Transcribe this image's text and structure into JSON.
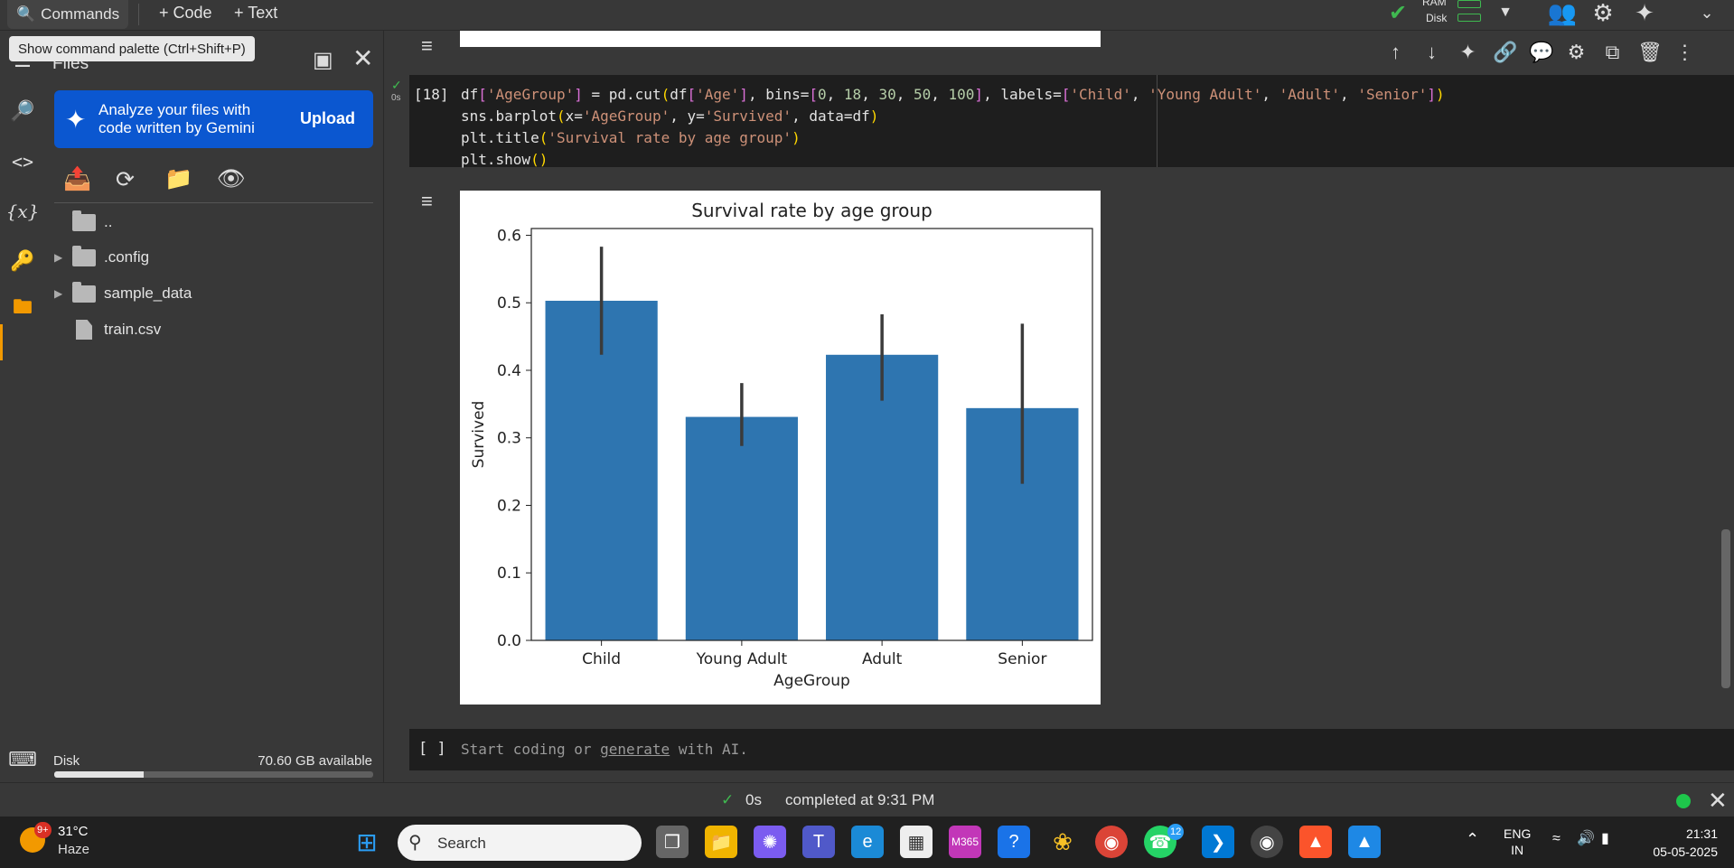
{
  "toolbar": {
    "commands_label": "Commands",
    "add_code_label": "+ Code",
    "add_text_label": "+ Text",
    "tooltip": "Show command palette (Ctrl+Shift+P)",
    "ram_label": "RAM",
    "disk_label": "Disk"
  },
  "file_panel": {
    "title": "Files",
    "gemini_text": "Analyze your files with code written by Gemini",
    "upload_label": "Upload",
    "tree": [
      {
        "name": "..",
        "type": "folder-open",
        "expandable": false
      },
      {
        "name": ".config",
        "type": "folder",
        "expandable": true
      },
      {
        "name": "sample_data",
        "type": "folder",
        "expandable": true
      },
      {
        "name": "train.csv",
        "type": "file",
        "expandable": false
      }
    ],
    "disk_label": "Disk",
    "disk_available": "70.60 GB available",
    "disk_used_fraction": 0.28
  },
  "cell": {
    "exec_count": "[18]",
    "run_time": "0s",
    "code_lines": [
      "df['AgeGroup'] = pd.cut(df['Age'], bins=[0, 18, 30, 50, 100], labels=['Child', 'Young Adult', 'Adult', 'Senior'])",
      "sns.barplot(x='AgeGroup', y='Survived', data=df)",
      "plt.title('Survival rate by age group')",
      "plt.show()"
    ]
  },
  "chart_data": {
    "type": "bar",
    "title": "Survival rate by age group",
    "xlabel": "AgeGroup",
    "ylabel": "Survived",
    "categories": [
      "Child",
      "Young Adult",
      "Adult",
      "Senior"
    ],
    "values": [
      0.503,
      0.331,
      0.423,
      0.344
    ],
    "error_low": [
      0.423,
      0.288,
      0.355,
      0.232
    ],
    "error_high": [
      0.583,
      0.381,
      0.483,
      0.469
    ],
    "ylim": [
      0,
      0.61
    ],
    "yticks": [
      "0.0",
      "0.1",
      "0.2",
      "0.3",
      "0.4",
      "0.5",
      "0.6"
    ],
    "ytick_values": [
      0,
      0.1,
      0.2,
      0.3,
      0.4,
      0.5,
      0.6
    ],
    "color": "#2e75b0",
    "errbar_color": "#3b3b3b",
    "grid": false,
    "legend": false
  },
  "new_cell": {
    "brackets": "[ ]",
    "placeholder_pre": "Start coding or ",
    "placeholder_link": "generate",
    "placeholder_post": " with AI."
  },
  "status": {
    "time": "0s",
    "completed": "completed at 9:31 PM",
    "connected_color": "#1ec64b"
  },
  "taskbar": {
    "weather_temp": "31°C",
    "weather_desc": "Haze",
    "weather_badge": "9+",
    "search_label": "Search",
    "whatsapp_badge": "12",
    "lang_top": "ENG",
    "lang_bottom": "IN",
    "time": "21:31",
    "date": "05-05-2025"
  }
}
